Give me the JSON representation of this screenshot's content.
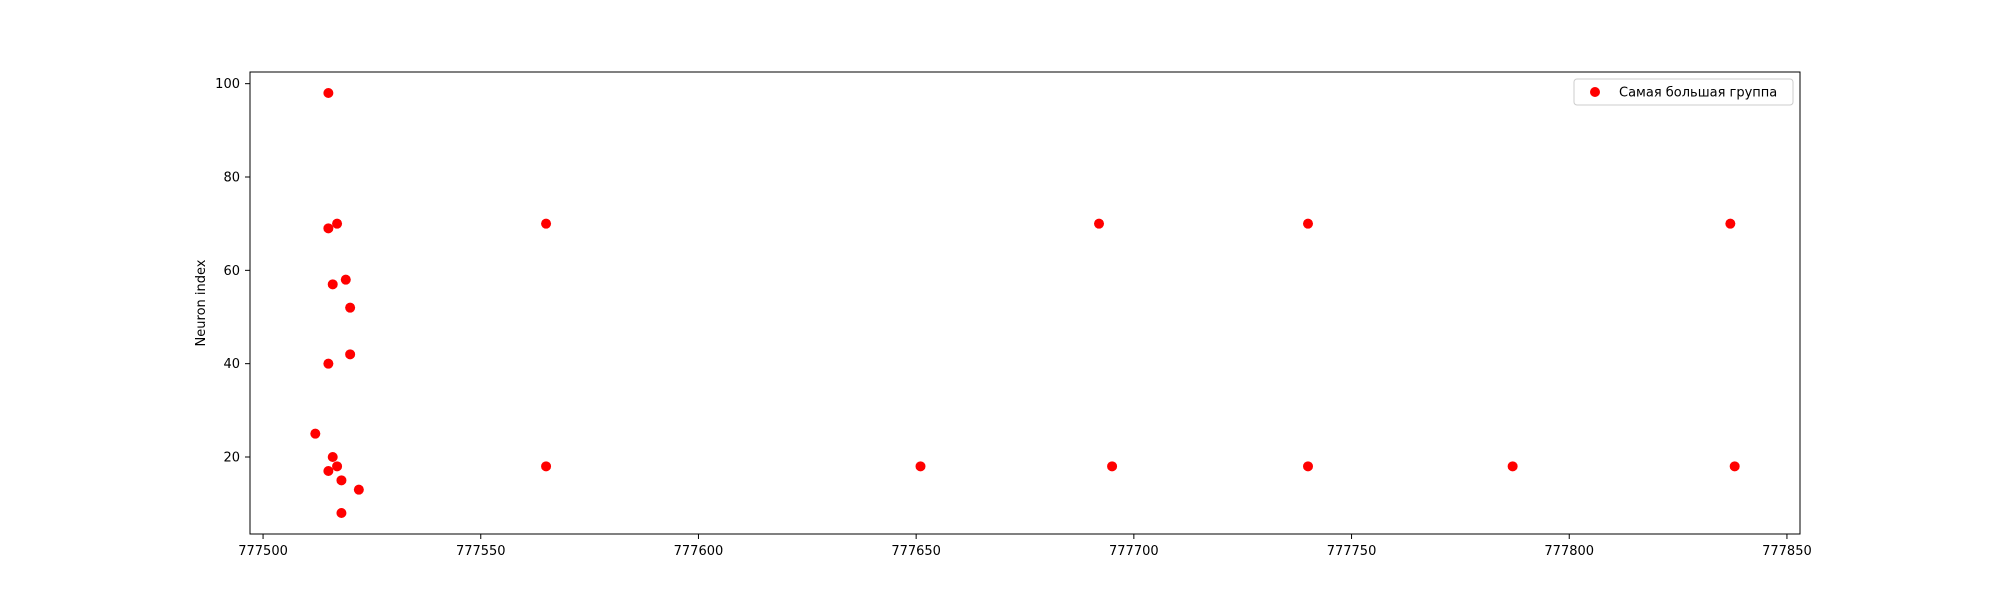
{
  "chart_data": {
    "type": "scatter",
    "xlabel": "",
    "ylabel": "Neuron index",
    "xlim": [
      777497,
      777853
    ],
    "ylim": [
      3.5,
      102.5
    ],
    "xticks": [
      777500,
      777550,
      777600,
      777650,
      777700,
      777750,
      777800,
      777850
    ],
    "yticks": [
      20,
      40,
      60,
      80,
      100
    ],
    "grid": false,
    "legend_position": "top-right",
    "series": [
      {
        "name": "Самая большая группа",
        "color": "#ff0000",
        "points": [
          {
            "x": 777515,
            "y": 98
          },
          {
            "x": 777517,
            "y": 70
          },
          {
            "x": 777515,
            "y": 69
          },
          {
            "x": 777519,
            "y": 58
          },
          {
            "x": 777516,
            "y": 57
          },
          {
            "x": 777520,
            "y": 52
          },
          {
            "x": 777520,
            "y": 42
          },
          {
            "x": 777515,
            "y": 40
          },
          {
            "x": 777512,
            "y": 25
          },
          {
            "x": 777516,
            "y": 20
          },
          {
            "x": 777517,
            "y": 18
          },
          {
            "x": 777515,
            "y": 17
          },
          {
            "x": 777518,
            "y": 15
          },
          {
            "x": 777522,
            "y": 13
          },
          {
            "x": 777518,
            "y": 8
          },
          {
            "x": 777565,
            "y": 70
          },
          {
            "x": 777565,
            "y": 18
          },
          {
            "x": 777651,
            "y": 18
          },
          {
            "x": 777692,
            "y": 70
          },
          {
            "x": 777695,
            "y": 18
          },
          {
            "x": 777740,
            "y": 70
          },
          {
            "x": 777740,
            "y": 18
          },
          {
            "x": 777787,
            "y": 18
          },
          {
            "x": 777837,
            "y": 70
          },
          {
            "x": 777838,
            "y": 18
          }
        ]
      }
    ]
  }
}
